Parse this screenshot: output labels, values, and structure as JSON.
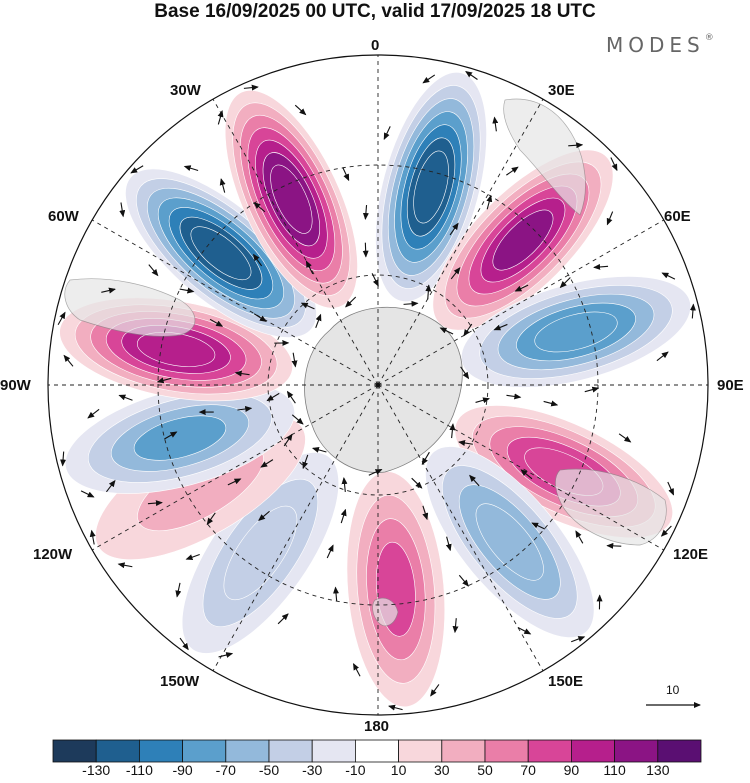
{
  "title": "Base 16/09/2025 00 UTC, valid 17/09/2025 18 UTC",
  "brand": "MODES",
  "brand_mark": "®",
  "longitude_labels": {
    "n0": "0",
    "e30": "30E",
    "e60": "60E",
    "e90": "90E",
    "e120": "120E",
    "e150": "150E",
    "s180": "180",
    "w150": "150W",
    "w120": "120W",
    "w90": "90W",
    "w60": "60W",
    "w30": "30W"
  },
  "reference_vector": {
    "label": "10",
    "arrow-icon": "arrow-right-icon"
  },
  "colorbar": {
    "ticks": [
      "-130",
      "-110",
      "-90",
      "-70",
      "-50",
      "-30",
      "-10",
      "10",
      "30",
      "50",
      "70",
      "90",
      "110",
      "130"
    ],
    "colors": [
      "#1d3a5b",
      "#1f5f8f",
      "#2e80b8",
      "#5b9fcc",
      "#93b9db",
      "#c3cfe6",
      "#e5e6f2",
      "#ffffff",
      "#f8d7dc",
      "#f2aec0",
      "#ea7ea8",
      "#d84598",
      "#b61f8c",
      "#8b1484",
      "#5a0f72"
    ]
  },
  "anomaly_centers": [
    {
      "lon": 15,
      "value": -120
    },
    {
      "lon": 45,
      "value": 115
    },
    {
      "lon": 75,
      "value": -80
    },
    {
      "lon": 115,
      "value": 85
    },
    {
      "lon": 140,
      "value": -60
    },
    {
      "lon": 175,
      "value": 70
    },
    {
      "lon": -145,
      "value": -40
    },
    {
      "lon": -120,
      "value": 30
    },
    {
      "lon": -105,
      "value": -75
    },
    {
      "lon": -80,
      "value": 100
    },
    {
      "lon": -50,
      "value": -125
    },
    {
      "lon": -25,
      "value": 120
    }
  ]
}
